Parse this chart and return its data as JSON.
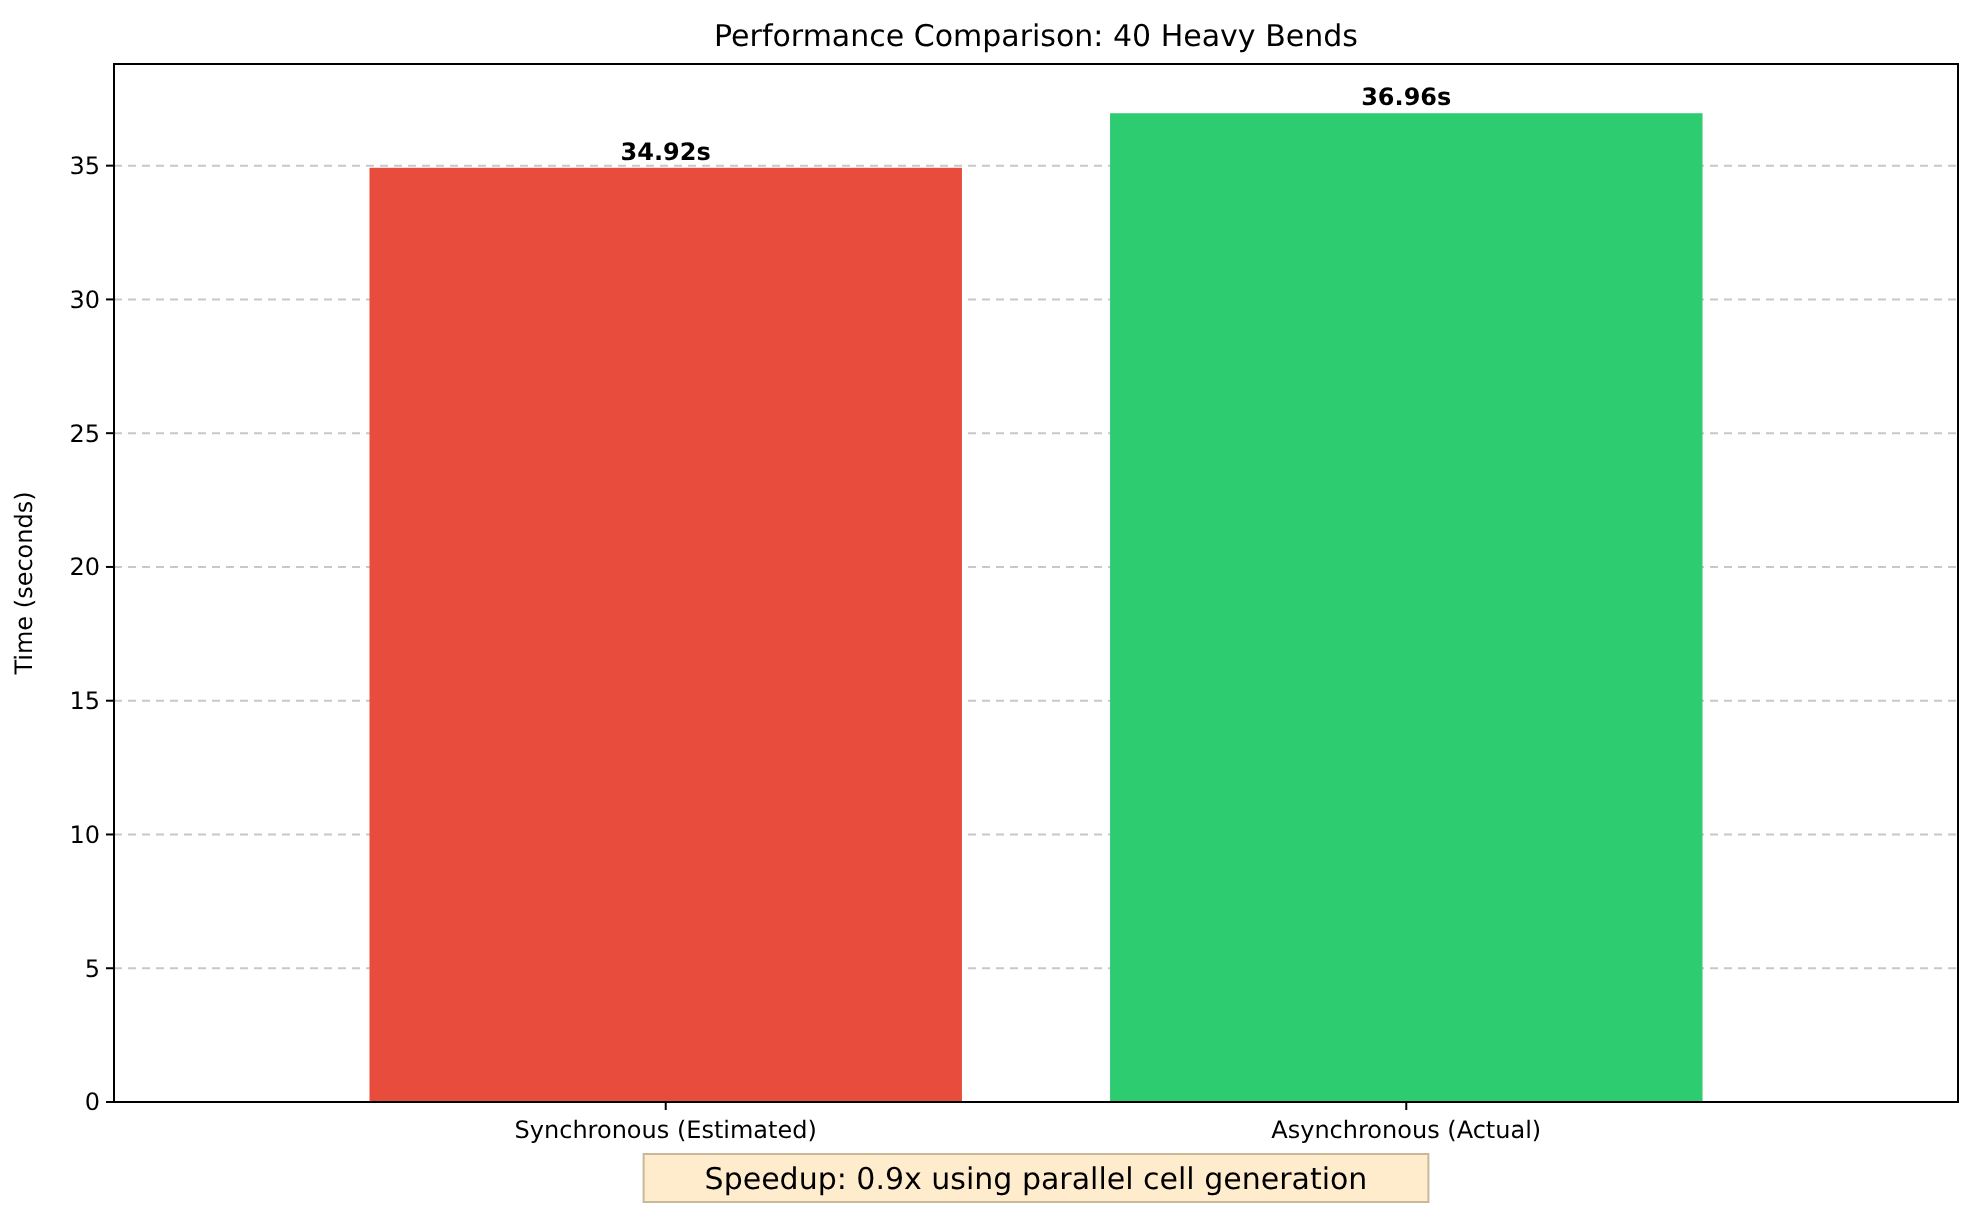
{
  "chart_data": {
    "type": "bar",
    "title": "Performance Comparison: 40 Heavy Bends",
    "ylabel": "Time (seconds)",
    "categories": [
      "Synchronous (Estimated)",
      "Asynchronous (Actual)"
    ],
    "values": [
      34.92,
      36.96
    ],
    "colors": [
      "#e74c3c",
      "#2ecc71"
    ],
    "value_labels": [
      "34.92s",
      "36.96s"
    ],
    "ylim": [
      0,
      38.8
    ],
    "yticks": [
      0,
      5,
      10,
      15,
      20,
      25,
      30,
      35
    ],
    "grid": "y",
    "annotations": [
      "Speedup: 0.9x using parallel cell generation"
    ]
  }
}
